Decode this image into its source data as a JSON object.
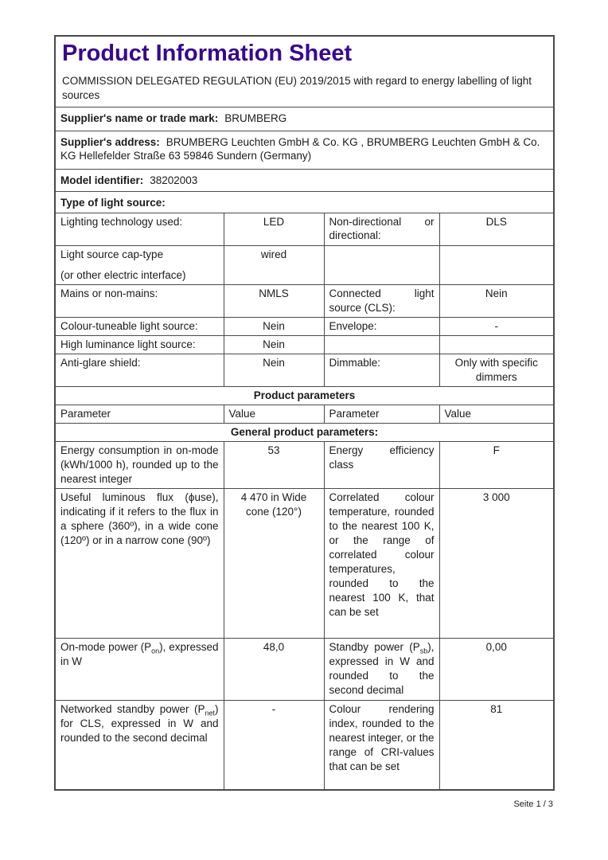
{
  "accent_color": "#38078f",
  "header": {
    "title": "Product Information Sheet",
    "regulation": "COMMISSION DELEGATED REGULATION (EU) 2019/2015 with regard to energy labelling of light sources"
  },
  "supplier": {
    "name_label": "Supplier's name or trade mark:",
    "name_value": "BRUMBERG",
    "address_label": "Supplier's address:",
    "address_value": "BRUMBERG Leuchten GmbH & Co. KG , BRUMBERG Leuchten GmbH & Co. KG Hellefelder Straße 63 59846 Sundern (Germany)",
    "model_label": "Model identifier:",
    "model_value": "38202003"
  },
  "type_section": {
    "header": "Type of light source:",
    "rows": [
      {
        "label": "Lighting technology used:",
        "value": "LED",
        "label2": "Non-directional or directional:",
        "value2": "DLS"
      },
      {
        "label_line1": "Light source cap-type",
        "label_line2": "(or other electric interface)",
        "value": "wired",
        "label2": "",
        "value2": ""
      },
      {
        "label": "Mains or non-mains:",
        "value": "NMLS",
        "label2": "Connected light source (CLS):",
        "value2": "Nein"
      },
      {
        "label": "Colour-tuneable light source:",
        "value": "Nein",
        "label2": "Envelope:",
        "value2": "-"
      },
      {
        "label": "High luminance light source:",
        "value": "Nein",
        "label2": "",
        "value2": ""
      },
      {
        "label": "Anti-glare shield:",
        "value": "Nein",
        "label2": "Dimmable:",
        "value2": "Only with specific dimmers"
      }
    ]
  },
  "product_params": {
    "section_title": "Product parameters",
    "col_headers": [
      "Parameter",
      "Value",
      "Parameter",
      "Value"
    ],
    "subsection_title": "General product parameters:",
    "rows": [
      {
        "label": "Energy consumption in on-mode (kWh/1000 h), rounded up to the nearest integer",
        "value": "53",
        "label2": "Energy efficiency class",
        "value2": "F"
      },
      {
        "label": "Useful luminous flux (ϕuse), indicating if it refers to the flux in a sphere (360º), in a wide cone (120º) or in a narrow cone (90º)",
        "value": "4 470 in Wide cone (120°)",
        "label2": "Correlated colour temperature, rounded to the nearest 100 K, or the range of correlated colour temperatures, rounded to the nearest 100 K, that can be set",
        "value2": "3 000"
      },
      {
        "label_pre": "On-mode power (P",
        "label_sub": "on",
        "label_post": "), expressed in W",
        "value": "48,0",
        "label2_pre": "Standby power (P",
        "label2_sub": "sb",
        "label2_post": "), expressed in W and rounded to the second decimal",
        "value2": "0,00"
      },
      {
        "label_pre": "Networked standby power (P",
        "label_sub": "net",
        "label_post": ") for CLS, expressed in W and rounded to the second decimal",
        "value": "-",
        "label2": "Colour rendering index, rounded to the nearest integer, or the range of CRI-values that can be set",
        "value2": "81"
      }
    ]
  },
  "footer": {
    "page_label": "Seite 1 / 3"
  }
}
